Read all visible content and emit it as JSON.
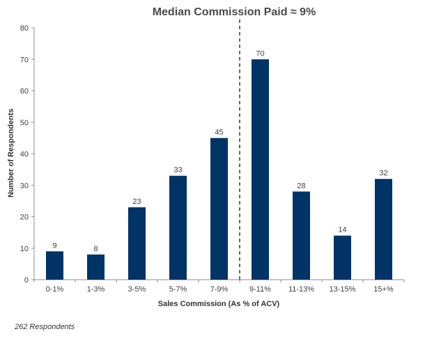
{
  "chart_data": {
    "type": "bar",
    "title": "Median Commission  Paid ≈ 9%",
    "xlabel": "Sales Commission (As % of ACV)",
    "ylabel": "Number of Respondents",
    "categories": [
      "0-1%",
      "1-3%",
      "3-5%",
      "5-7%",
      "7-9%",
      "9-11%",
      "11-13%",
      "13-15%",
      "15+%"
    ],
    "values": [
      9,
      8,
      23,
      33,
      45,
      70,
      28,
      14,
      32
    ],
    "ylim": [
      0,
      80
    ],
    "yticks": [
      0,
      10,
      20,
      30,
      40,
      50,
      60,
      70,
      80
    ],
    "bar_color": "#003366",
    "grid": false,
    "median_line_between": [
      "7-9%",
      "9-11%"
    ]
  },
  "footnote": "262 Respondents"
}
